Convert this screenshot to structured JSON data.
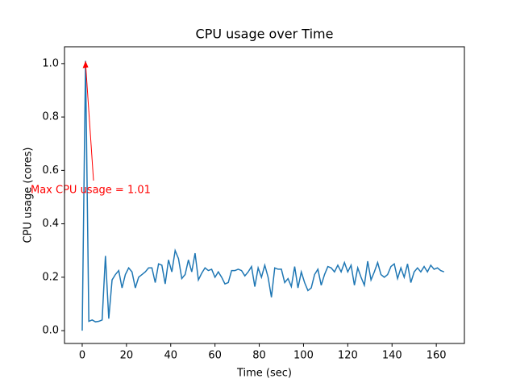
{
  "chart_data": {
    "type": "line",
    "title": "CPU usage over Time",
    "xlabel": "Time (sec)",
    "ylabel": "CPU usage (cores)",
    "annotation": "Max CPU usage = 1.01",
    "annotation_color": "#ff0000",
    "x": [
      0,
      1.5,
      3,
      4.5,
      6,
      7.5,
      9,
      10.5,
      12,
      13.5,
      15,
      16.5,
      18,
      19.5,
      21,
      22.5,
      24,
      25.5,
      27,
      28.5,
      30,
      31.5,
      33,
      34.5,
      36,
      37.5,
      39,
      40.5,
      42,
      43.5,
      45,
      46.5,
      48,
      49.5,
      51,
      52.5,
      54,
      55.5,
      57,
      58.5,
      60,
      61.5,
      63,
      64.5,
      66,
      67.5,
      69,
      70.5,
      72,
      73.5,
      75,
      76.5,
      78,
      79.5,
      81,
      82.5,
      84,
      85.5,
      87,
      88.5,
      90,
      91.5,
      93,
      94.5,
      96,
      97.5,
      99,
      100.5,
      102,
      103.5,
      105,
      106.5,
      108,
      109.5,
      111,
      112.5,
      114,
      115.5,
      117,
      118.5,
      120,
      121.5,
      123,
      124.5,
      126,
      127.5,
      129,
      130.5,
      132,
      133.5,
      135,
      136.5,
      138,
      139.5,
      141,
      142.5,
      144,
      145.5,
      147,
      148.5,
      150,
      151.5,
      153,
      154.5,
      156,
      157.5,
      159,
      160.5,
      162,
      163.5
    ],
    "series": [
      {
        "name": "CPU usage",
        "color": "#1f77b4",
        "values": [
          0,
          1.01,
          0.035,
          0.04,
          0.033,
          0.035,
          0.04,
          0.28,
          0.045,
          0.19,
          0.21,
          0.225,
          0.16,
          0.21,
          0.235,
          0.22,
          0.16,
          0.2,
          0.21,
          0.22,
          0.235,
          0.235,
          0.18,
          0.25,
          0.245,
          0.175,
          0.265,
          0.22,
          0.3,
          0.27,
          0.195,
          0.21,
          0.265,
          0.22,
          0.29,
          0.19,
          0.215,
          0.235,
          0.225,
          0.23,
          0.2,
          0.22,
          0.2,
          0.175,
          0.18,
          0.225,
          0.225,
          0.23,
          0.225,
          0.205,
          0.22,
          0.24,
          0.165,
          0.235,
          0.2,
          0.245,
          0.2,
          0.125,
          0.235,
          0.23,
          0.23,
          0.18,
          0.195,
          0.165,
          0.24,
          0.16,
          0.22,
          0.18,
          0.15,
          0.16,
          0.21,
          0.23,
          0.17,
          0.21,
          0.24,
          0.235,
          0.22,
          0.245,
          0.22,
          0.255,
          0.22,
          0.245,
          0.17,
          0.235,
          0.2,
          0.17,
          0.26,
          0.19,
          0.22,
          0.255,
          0.21,
          0.2,
          0.21,
          0.24,
          0.25,
          0.195,
          0.235,
          0.2,
          0.25,
          0.18,
          0.22,
          0.235,
          0.22,
          0.24,
          0.22,
          0.245,
          0.23,
          0.235,
          0.225,
          0.22
        ]
      }
    ],
    "xlim": [
      -8,
      172.7
    ],
    "ylim": [
      -0.048,
      1.063
    ],
    "xticks": [
      0,
      20,
      40,
      60,
      80,
      100,
      120,
      140,
      160
    ],
    "yticks": [
      {
        "value": 0,
        "label": "0.0"
      },
      0.2,
      0.4,
      0.6,
      0.8,
      {
        "value": 1,
        "label": "1.0"
      }
    ]
  }
}
